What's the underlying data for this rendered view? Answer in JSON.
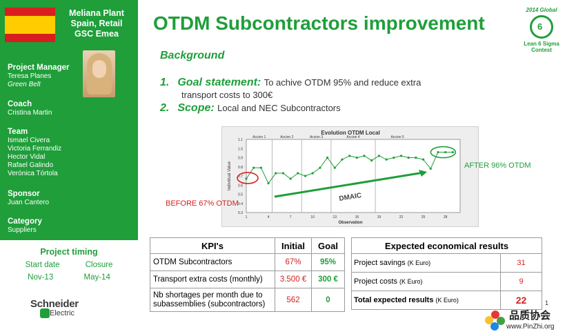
{
  "sidebar": {
    "plant": [
      "Meliana Plant",
      "Spain, Retail",
      "GSC Emea"
    ],
    "project_manager": {
      "heading": "Project Manager",
      "name": "Teresa Planes",
      "belt": "Green Belt"
    },
    "coach": {
      "heading": "Coach",
      "name": "Cristina Martin"
    },
    "team": {
      "heading": "Team",
      "members": [
        "Ismael Civera",
        "Victoria Ferrandiz",
        "Hector Vidal",
        "Rafael Galindo",
        "Verónica Tórtola"
      ]
    },
    "sponsor": {
      "heading": "Sponsor",
      "name": "Juan Cantero"
    },
    "category": {
      "heading": "Category",
      "value": "Suppliers"
    }
  },
  "timing": {
    "title": "Project timing",
    "start_label": "Start date",
    "closure_label": "Closure",
    "start": "Nov-13",
    "closure": "May-14"
  },
  "logo": {
    "name": "Schneider",
    "sub": "Electric"
  },
  "title": "OTDM Subcontractors improvement",
  "badge": {
    "line1": "2014 Global",
    "line2": "Lean 6 Sigma",
    "line3": "Contest"
  },
  "background": "Background",
  "goal": {
    "num": "1.",
    "key": "Goal statement:",
    "text1": "To achive OTDM 95% and reduce extra",
    "text2": "transport costs to 300€"
  },
  "scope": {
    "num": "2.",
    "key": "Scope:",
    "text": "Local and NEC Subcontractors"
  },
  "chart_data": {
    "type": "line",
    "title": "Evolution OTDM Local",
    "xlabel": "Observation",
    "ylabel": "Individual Value",
    "ylim": [
      0.3,
      1.1
    ],
    "yticks": [
      "1.1",
      "1.0",
      "0.9",
      "0.8",
      "0.7",
      "0.6",
      "0.5",
      "0.4",
      "0.3"
    ],
    "xticks": [
      "1",
      "4",
      "7",
      "10",
      "13",
      "16",
      "19",
      "22",
      "25",
      "28"
    ],
    "phases": [
      "Accion 1",
      "Accion 2",
      "Accion 3",
      "Accion 4",
      "Accion 5"
    ],
    "x": [
      1,
      2,
      3,
      4,
      5,
      6,
      7,
      8,
      9,
      10,
      11,
      12,
      13,
      14,
      15,
      16,
      17,
      18,
      19,
      20,
      21,
      22,
      23,
      24,
      25,
      26,
      27,
      28,
      29
    ],
    "values": [
      0.67,
      0.79,
      0.79,
      0.62,
      0.73,
      0.73,
      0.67,
      0.73,
      0.7,
      0.73,
      0.79,
      0.9,
      0.79,
      0.88,
      0.92,
      0.9,
      0.92,
      0.87,
      0.92,
      0.88,
      0.9,
      0.92,
      0.9,
      0.9,
      0.88,
      0.78,
      0.96,
      0.96,
      0.96
    ],
    "annotations": {
      "before": "BEFORE 67% OTDM",
      "after": "AFTER 96% OTDM",
      "arrow": "DMAIC"
    }
  },
  "kpi": {
    "headers": [
      "KPI's",
      "Initial",
      "Goal"
    ],
    "rows": [
      {
        "name": "OTDM Subcontractors",
        "initial": "67%",
        "goal": "95%"
      },
      {
        "name": "Transport extra costs (monthly)",
        "initial": "3.500 €",
        "goal": "300 €"
      },
      {
        "name": "Nb shortages per month due to subassemblies (subcontractors)",
        "initial": "562",
        "goal": "0"
      }
    ]
  },
  "econ": {
    "header": "Expected economical results",
    "rows": [
      {
        "label": "Project savings",
        "unit": "(K Euro)",
        "value": "31"
      },
      {
        "label": "Project costs",
        "unit": "(K Euro)",
        "value": "9"
      },
      {
        "label": "Total expected results",
        "unit": "(K Euro)",
        "value": "22"
      }
    ]
  },
  "page_number": "1",
  "watermark": {
    "cn": "品质协会",
    "url": "www.PinZhi.org"
  },
  "colors": {
    "brand_green": "#1f9e3a",
    "accent_red": "#d62020"
  }
}
